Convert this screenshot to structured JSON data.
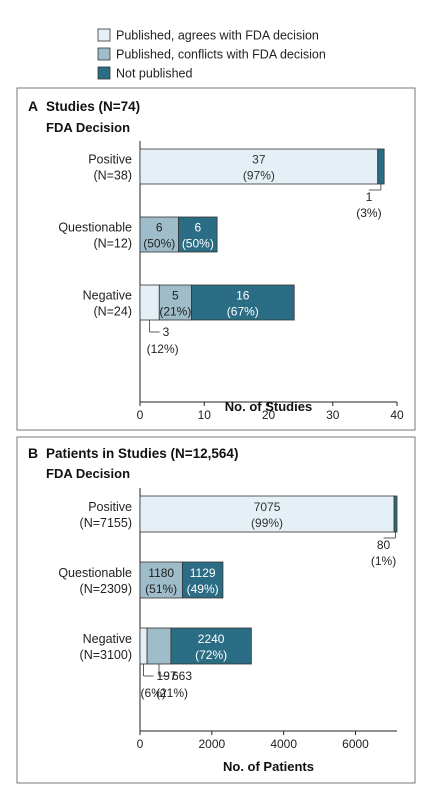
{
  "legend": {
    "items": [
      {
        "label": "Published, agrees with FDA decision",
        "color": "#e4eff6"
      },
      {
        "label": "Published, conflicts with FDA decision",
        "color": "#9fbcca"
      },
      {
        "label": "Not published",
        "color": "#2b6d84"
      }
    ]
  },
  "chart_data": [
    {
      "type": "bar",
      "stacked": true,
      "orientation": "horizontal",
      "panel_letter": "A",
      "title": "Studies (N=74)",
      "subtitle": "FDA Decision",
      "xlabel": "No. of Studies",
      "xlim": [
        0,
        40
      ],
      "xticks": [
        0,
        10,
        20,
        30,
        40
      ],
      "tick_labels": [
        "0",
        "10",
        "20",
        "30",
        "40"
      ],
      "categories": [
        {
          "name": "Positive",
          "n_label": "(N=38)"
        },
        {
          "name": "Questionable",
          "n_label": "(N=12)"
        },
        {
          "name": "Negative",
          "n_label": "(N=24)"
        }
      ],
      "series": [
        {
          "name": "Published, agrees with FDA decision",
          "values": [
            37,
            0,
            3
          ],
          "labels": [
            {
              "value": "37",
              "pct": "(97%)",
              "position": "inside"
            },
            null,
            {
              "value": "3",
              "pct": "(12%)",
              "position": "callout"
            }
          ]
        },
        {
          "name": "Published, conflicts with FDA decision",
          "values": [
            0,
            6,
            5
          ],
          "labels": [
            null,
            {
              "value": "6",
              "pct": "(50%)",
              "position": "inside"
            },
            {
              "value": "5",
              "pct": "(21%)",
              "position": "inside"
            }
          ]
        },
        {
          "name": "Not published",
          "values": [
            1,
            6,
            16
          ],
          "labels": [
            {
              "value": "1",
              "pct": "(3%)",
              "position": "callout-below"
            },
            {
              "value": "6",
              "pct": "(50%)",
              "position": "inside"
            },
            {
              "value": "16",
              "pct": "(67%)",
              "position": "inside"
            }
          ]
        }
      ]
    },
    {
      "type": "bar",
      "stacked": true,
      "orientation": "horizontal",
      "panel_letter": "B",
      "title": "Patients in Studies (N=12,564)",
      "subtitle": "FDA Decision",
      "xlabel": "No. of Patients",
      "xlim": [
        0,
        7155
      ],
      "xticks": [
        0,
        2000,
        4000,
        6000
      ],
      "tick_labels": [
        "0",
        "2000",
        "4000",
        "6000"
      ],
      "categories": [
        {
          "name": "Positive",
          "n_label": "(N=7155)"
        },
        {
          "name": "Questionable",
          "n_label": "(N=2309)"
        },
        {
          "name": "Negative",
          "n_label": "(N=3100)"
        }
      ],
      "series": [
        {
          "name": "Published, agrees with FDA decision",
          "values": [
            7075,
            0,
            197
          ],
          "labels": [
            {
              "value": "7075",
              "pct": "(99%)",
              "position": "inside"
            },
            null,
            {
              "value": "197",
              "pct": "(6%)",
              "position": "callout"
            }
          ]
        },
        {
          "name": "Published, conflicts with FDA decision",
          "values": [
            0,
            1180,
            663
          ],
          "labels": [
            null,
            {
              "value": "1180",
              "pct": "(51%)",
              "position": "inside"
            },
            {
              "value": "663",
              "pct": "(21%)",
              "position": "callout"
            }
          ]
        },
        {
          "name": "Not published",
          "values": [
            80,
            1129,
            2240
          ],
          "labels": [
            {
              "value": "80",
              "pct": "(1%)",
              "position": "callout-below"
            },
            {
              "value": "1129",
              "pct": "(49%)",
              "position": "inside"
            },
            {
              "value": "2240",
              "pct": "(72%)",
              "position": "inside"
            }
          ]
        }
      ]
    }
  ]
}
